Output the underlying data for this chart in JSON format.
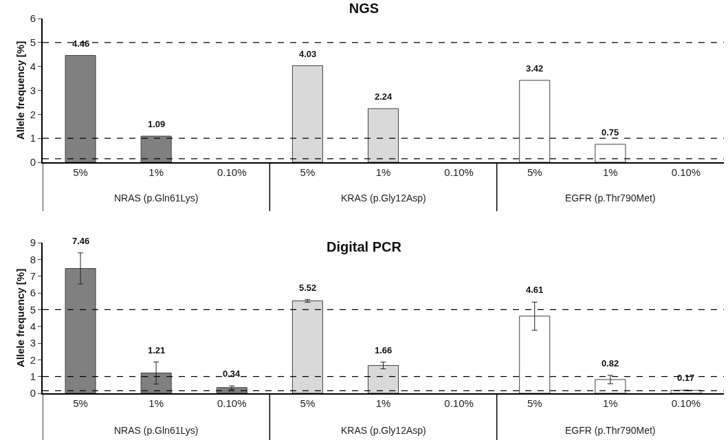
{
  "chart_data": [
    {
      "type": "bar",
      "title": "NGS",
      "ylabel": "Allele frequency [%]",
      "categories": [
        "5%",
        "1%",
        "0.10%",
        "5%",
        "1%",
        "0.10%",
        "5%",
        "1%",
        "0.10%"
      ],
      "values": [
        4.46,
        1.09,
        null,
        4.03,
        2.24,
        null,
        3.42,
        0.75,
        null
      ],
      "colors": [
        "#808080",
        "#808080",
        "#808080",
        "#d9d9d9",
        "#d9d9d9",
        "#d9d9d9",
        "#ffffff",
        "#ffffff",
        "#ffffff"
      ],
      "data_labels": true,
      "ylim": [
        0,
        6
      ],
      "yticks": [
        0,
        1,
        2,
        3,
        4,
        5,
        6
      ],
      "grid": false,
      "legend": false,
      "ref_lines": [
        {
          "axis": "y",
          "value": 5,
          "line_style": "dashed"
        },
        {
          "axis": "y",
          "value": 1,
          "line_style": "dashed"
        },
        {
          "axis": "y",
          "value": 0.15,
          "line_style": "dashed"
        }
      ],
      "annotations": [
        "NRAS (p.Gln61Lys)",
        "KRAS (p.Gly12Asp)",
        "EGFR (p.Thr790Met)"
      ]
    },
    {
      "type": "bar",
      "title": "Digital PCR",
      "ylabel": "Allele frequency [%]",
      "categories": [
        "5%",
        "1%",
        "0.10%",
        "5%",
        "1%",
        "0.10%",
        "5%",
        "1%",
        "0.10%"
      ],
      "values": [
        7.46,
        1.21,
        0.34,
        5.52,
        1.66,
        null,
        4.61,
        0.82,
        0.17
      ],
      "errors": [
        0.93,
        0.66,
        0.1,
        0.08,
        0.2,
        null,
        0.84,
        0.25,
        0.02
      ],
      "colors": [
        "#808080",
        "#808080",
        "#808080",
        "#d9d9d9",
        "#d9d9d9",
        "#d9d9d9",
        "#ffffff",
        "#ffffff",
        "#ffffff"
      ],
      "data_labels": true,
      "ylim": [
        0,
        9
      ],
      "yticks": [
        0,
        1,
        2,
        3,
        4,
        5,
        6,
        7,
        8,
        9
      ],
      "grid": false,
      "legend": false,
      "ref_lines": [
        {
          "axis": "y",
          "value": 5,
          "line_style": "dashed"
        },
        {
          "axis": "y",
          "value": 1,
          "line_style": "dashed"
        },
        {
          "axis": "y",
          "value": 0.15,
          "line_style": "dashed"
        }
      ],
      "annotations": [
        "NRAS (p.Gln61Lys)",
        "KRAS (p.Gly12Asp)",
        "EGFR (p.Thr790Met)"
      ]
    }
  ]
}
